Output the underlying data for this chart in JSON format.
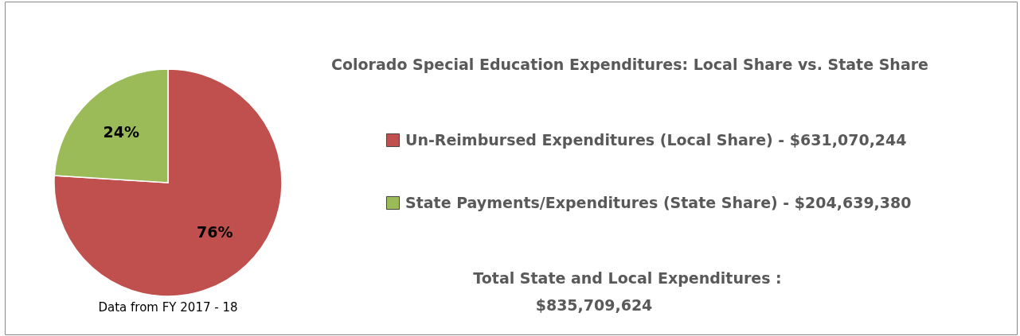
{
  "chart_data": {
    "type": "pie",
    "title": "Colorado Special Education Expenditures: Local Share vs. State Share",
    "categories": [
      "Un-Reimbursed Expenditures (Local Share) - $631,070,244",
      "State Payments/Expenditures (State Share) - $204,639,380"
    ],
    "values": [
      76,
      24
    ],
    "value_labels": [
      "76%",
      "24%"
    ],
    "colors": [
      "#c0504d",
      "#9bbb59"
    ],
    "legend": "right",
    "annotations": [
      "Total State and Local Expenditures :",
      "$835,709,624",
      "Data from FY 2017 - 18"
    ]
  }
}
